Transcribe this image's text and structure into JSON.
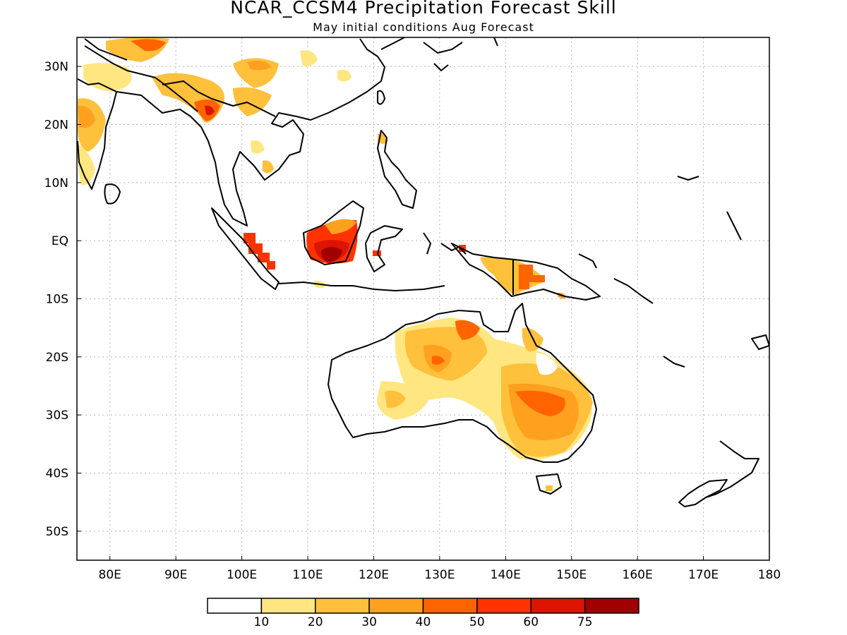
{
  "title": "NCAR_CCSM4 Precipitation Forecast Skill",
  "subtitle": "May initial conditions  Aug Forecast",
  "map": {
    "lon_range": [
      75,
      180
    ],
    "lat_range": [
      -55,
      35
    ],
    "grid": true,
    "lat_ticks": [
      "30N",
      "20N",
      "10N",
      "EQ",
      "10S",
      "20S",
      "30S",
      "40S",
      "50S"
    ],
    "lon_ticks": [
      "80E",
      "90E",
      "100E",
      "110E",
      "120E",
      "130E",
      "140E",
      "150E",
      "160E",
      "170E",
      "180"
    ]
  },
  "colorbar": {
    "colors": [
      "#ffffff",
      "#ffe680",
      "#ffc03c",
      "#ffa01e",
      "#ff6400",
      "#ff3200",
      "#dc1400",
      "#a00000"
    ],
    "labels": [
      "10",
      "20",
      "30",
      "40",
      "50",
      "60",
      "75"
    ]
  }
}
